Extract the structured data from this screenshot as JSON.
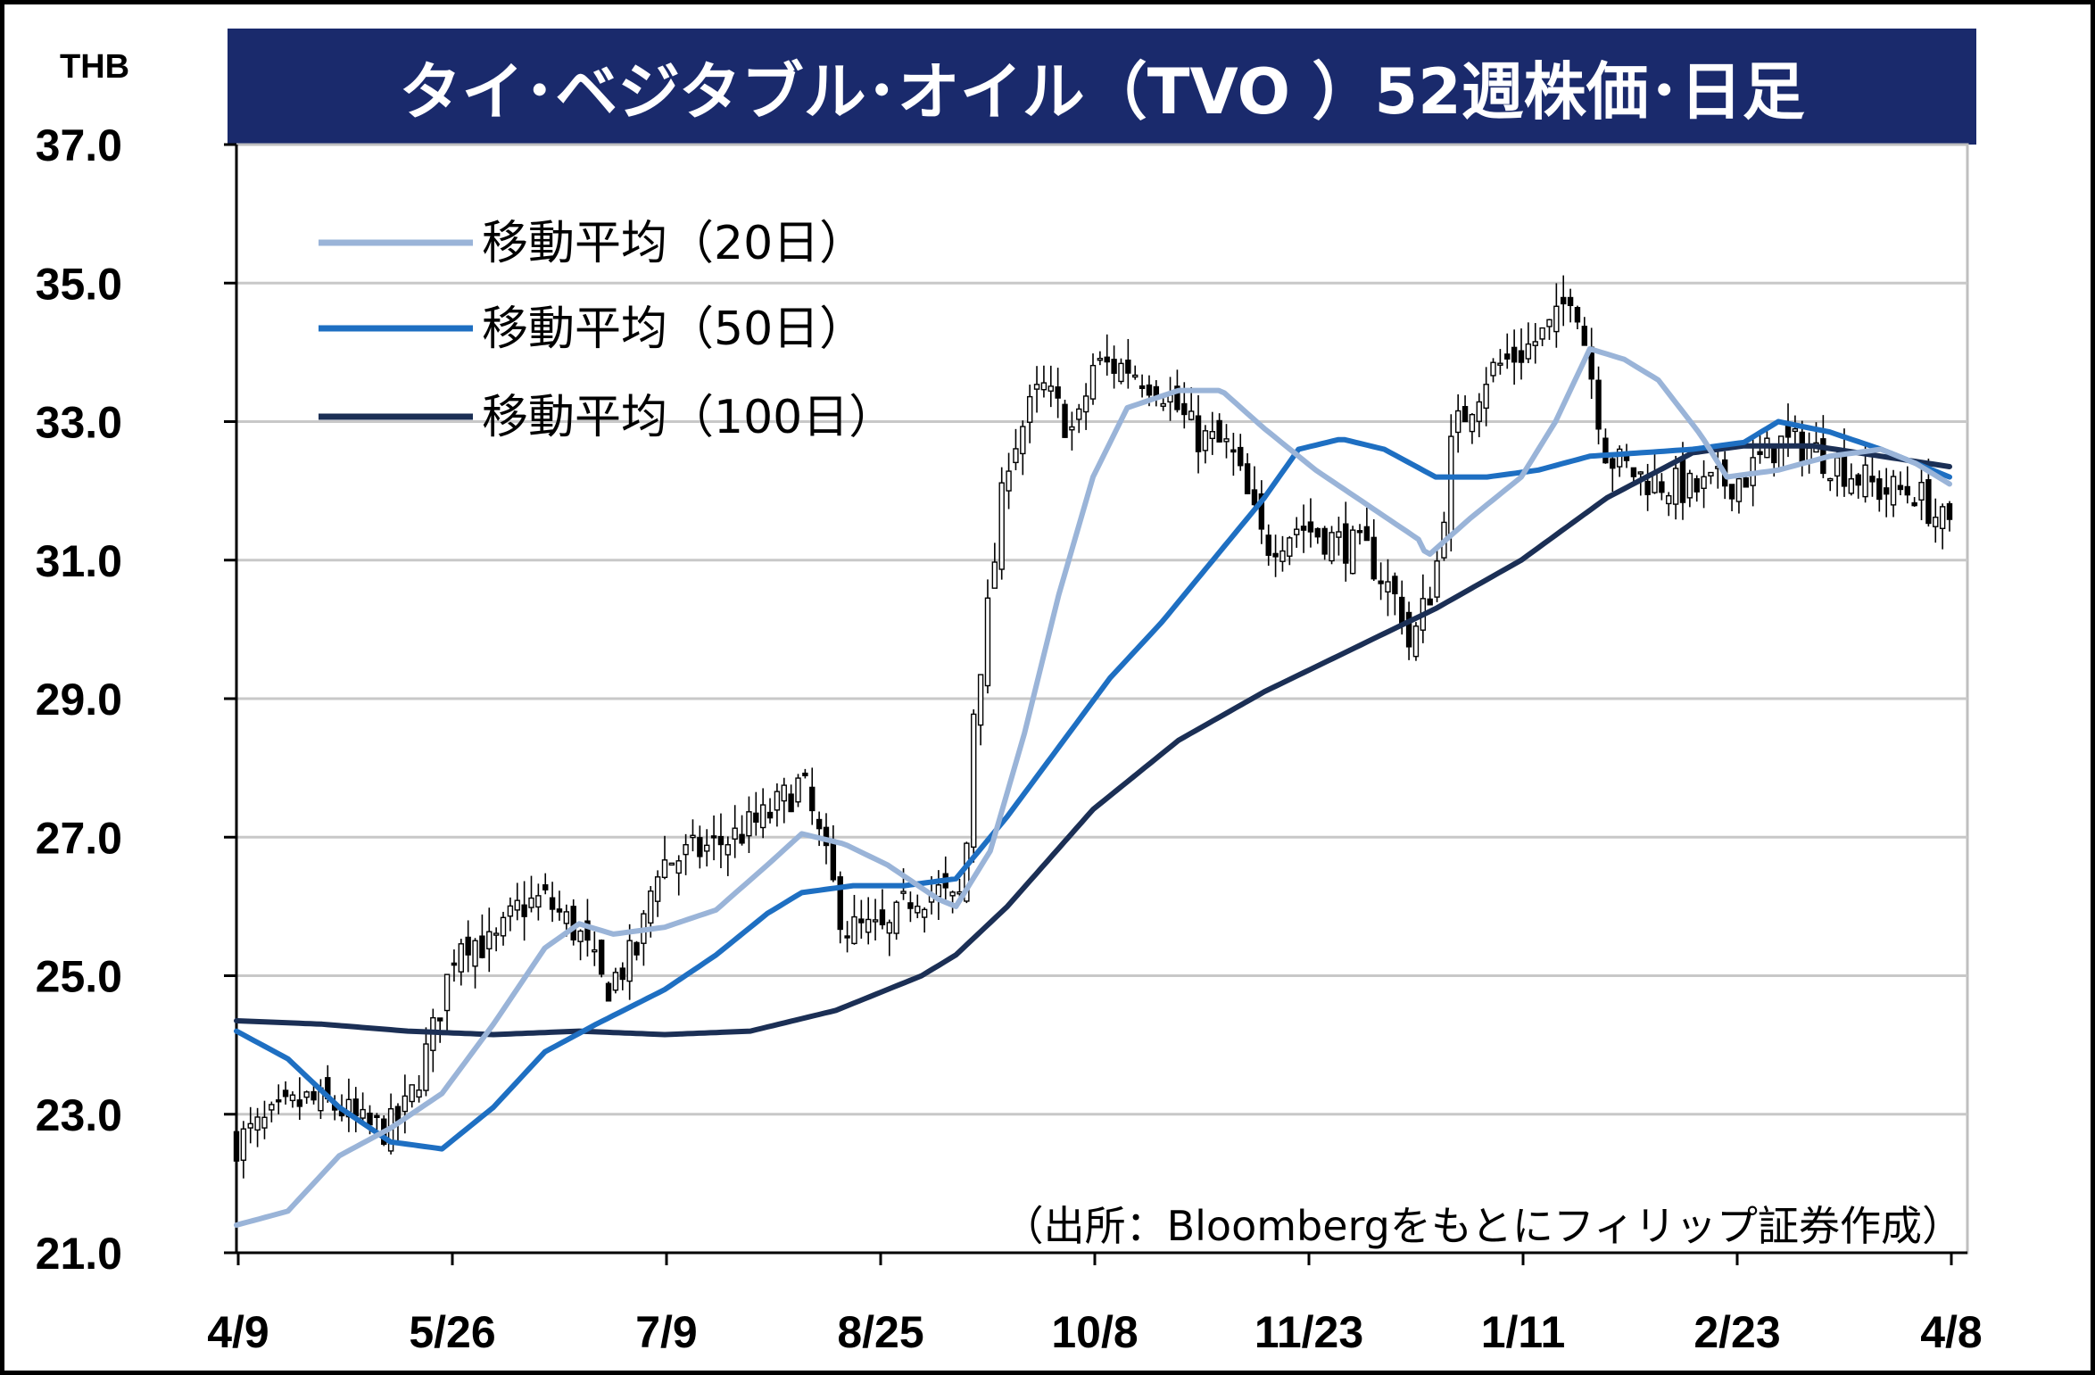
{
  "chart_data": {
    "type": "candlestick",
    "title": "タイ･ベジタブル･オイル（TVO ）52週株価･日足",
    "unit": "THB",
    "source": "（出所：Bloombergをもとにフィリップ証券作成）",
    "ylim": [
      21.0,
      37.0
    ],
    "y_ticks": [
      "21.0",
      "23.0",
      "25.0",
      "27.0",
      "29.0",
      "31.0",
      "33.0",
      "35.0",
      "37.0"
    ],
    "x_ticks": [
      "4/9",
      "5/26",
      "7/9",
      "8/25",
      "10/8",
      "11/23",
      "1/11",
      "2/23",
      "4/8"
    ],
    "grid": true,
    "legend_position": "top-left",
    "colors": {
      "title_bg": "#1a2a6c",
      "ma20": "#9ab4d8",
      "ma50": "#1e6fc2",
      "ma100": "#1b2f55",
      "grid": "#c8c8c8",
      "candle": "#000000"
    },
    "close_anchors": [
      {
        "t": 0.0,
        "v": 22.6
      },
      {
        "t": 0.02,
        "v": 22.9
      },
      {
        "t": 0.04,
        "v": 23.2
      },
      {
        "t": 0.06,
        "v": 23.1
      },
      {
        "t": 0.075,
        "v": 22.8
      },
      {
        "t": 0.09,
        "v": 22.8
      },
      {
        "t": 0.1,
        "v": 23.1
      },
      {
        "t": 0.115,
        "v": 24.2
      },
      {
        "t": 0.13,
        "v": 25.6
      },
      {
        "t": 0.15,
        "v": 25.4
      },
      {
        "t": 0.165,
        "v": 26.0
      },
      {
        "t": 0.18,
        "v": 26.1
      },
      {
        "t": 0.2,
        "v": 25.6
      },
      {
        "t": 0.215,
        "v": 24.8
      },
      {
        "t": 0.235,
        "v": 25.4
      },
      {
        "t": 0.245,
        "v": 26.6
      },
      {
        "t": 0.27,
        "v": 26.8
      },
      {
        "t": 0.29,
        "v": 27.0
      },
      {
        "t": 0.31,
        "v": 27.3
      },
      {
        "t": 0.33,
        "v": 27.8
      },
      {
        "t": 0.34,
        "v": 27.0
      },
      {
        "t": 0.355,
        "v": 25.7
      },
      {
        "t": 0.38,
        "v": 25.6
      },
      {
        "t": 0.395,
        "v": 26.2
      },
      {
        "t": 0.41,
        "v": 26.2
      },
      {
        "t": 0.42,
        "v": 26.0
      },
      {
        "t": 0.425,
        "v": 26.3
      },
      {
        "t": 0.43,
        "v": 28.8
      },
      {
        "t": 0.44,
        "v": 30.5
      },
      {
        "t": 0.45,
        "v": 32.5
      },
      {
        "t": 0.47,
        "v": 33.5
      },
      {
        "t": 0.49,
        "v": 32.8
      },
      {
        "t": 0.5,
        "v": 33.8
      },
      {
        "t": 0.52,
        "v": 33.8
      },
      {
        "t": 0.54,
        "v": 33.5
      },
      {
        "t": 0.56,
        "v": 32.8
      },
      {
        "t": 0.58,
        "v": 32.6
      },
      {
        "t": 0.6,
        "v": 31.2
      },
      {
        "t": 0.62,
        "v": 31.5
      },
      {
        "t": 0.64,
        "v": 31.3
      },
      {
        "t": 0.66,
        "v": 31.1
      },
      {
        "t": 0.68,
        "v": 30.3
      },
      {
        "t": 0.685,
        "v": 29.7
      },
      {
        "t": 0.7,
        "v": 30.8
      },
      {
        "t": 0.71,
        "v": 32.8
      },
      {
        "t": 0.73,
        "v": 33.7
      },
      {
        "t": 0.75,
        "v": 34.0
      },
      {
        "t": 0.77,
        "v": 34.4
      },
      {
        "t": 0.78,
        "v": 35.0
      },
      {
        "t": 0.79,
        "v": 33.8
      },
      {
        "t": 0.8,
        "v": 32.5
      },
      {
        "t": 0.82,
        "v": 32.2
      },
      {
        "t": 0.85,
        "v": 32.0
      },
      {
        "t": 0.88,
        "v": 32.2
      },
      {
        "t": 0.9,
        "v": 32.7
      },
      {
        "t": 0.92,
        "v": 32.6
      },
      {
        "t": 0.94,
        "v": 32.3
      },
      {
        "t": 0.96,
        "v": 32.0
      },
      {
        "t": 0.98,
        "v": 32.0
      },
      {
        "t": 1.0,
        "v": 31.4
      }
    ],
    "ma20_anchors": [
      {
        "t": 0.0,
        "v": 21.4
      },
      {
        "t": 0.03,
        "v": 21.6
      },
      {
        "t": 0.06,
        "v": 22.4
      },
      {
        "t": 0.09,
        "v": 22.8
      },
      {
        "t": 0.12,
        "v": 23.3
      },
      {
        "t": 0.15,
        "v": 24.3
      },
      {
        "t": 0.18,
        "v": 25.4
      },
      {
        "t": 0.2,
        "v": 25.75
      },
      {
        "t": 0.22,
        "v": 25.6
      },
      {
        "t": 0.25,
        "v": 25.7
      },
      {
        "t": 0.28,
        "v": 25.95
      },
      {
        "t": 0.31,
        "v": 26.6
      },
      {
        "t": 0.33,
        "v": 27.05
      },
      {
        "t": 0.355,
        "v": 26.9
      },
      {
        "t": 0.38,
        "v": 26.6
      },
      {
        "t": 0.41,
        "v": 26.1
      },
      {
        "t": 0.42,
        "v": 26.0
      },
      {
        "t": 0.44,
        "v": 26.8
      },
      {
        "t": 0.46,
        "v": 28.5
      },
      {
        "t": 0.48,
        "v": 30.5
      },
      {
        "t": 0.5,
        "v": 32.2
      },
      {
        "t": 0.52,
        "v": 33.2
      },
      {
        "t": 0.55,
        "v": 33.45
      },
      {
        "t": 0.575,
        "v": 33.45
      },
      {
        "t": 0.6,
        "v": 32.9
      },
      {
        "t": 0.63,
        "v": 32.3
      },
      {
        "t": 0.66,
        "v": 31.8
      },
      {
        "t": 0.69,
        "v": 31.3
      },
      {
        "t": 0.695,
        "v": 31.05
      },
      {
        "t": 0.72,
        "v": 31.6
      },
      {
        "t": 0.75,
        "v": 32.2
      },
      {
        "t": 0.77,
        "v": 33.0
      },
      {
        "t": 0.79,
        "v": 34.05
      },
      {
        "t": 0.81,
        "v": 33.9
      },
      {
        "t": 0.83,
        "v": 33.6
      },
      {
        "t": 0.855,
        "v": 32.8
      },
      {
        "t": 0.87,
        "v": 32.2
      },
      {
        "t": 0.9,
        "v": 32.3
      },
      {
        "t": 0.93,
        "v": 32.5
      },
      {
        "t": 0.96,
        "v": 32.6
      },
      {
        "t": 0.98,
        "v": 32.4
      },
      {
        "t": 1.0,
        "v": 32.1
      }
    ],
    "ma50_anchors": [
      {
        "t": 0.0,
        "v": 24.2
      },
      {
        "t": 0.03,
        "v": 23.8
      },
      {
        "t": 0.06,
        "v": 23.1
      },
      {
        "t": 0.09,
        "v": 22.6
      },
      {
        "t": 0.12,
        "v": 22.5
      },
      {
        "t": 0.15,
        "v": 23.1
      },
      {
        "t": 0.18,
        "v": 23.9
      },
      {
        "t": 0.21,
        "v": 24.3
      },
      {
        "t": 0.25,
        "v": 24.8
      },
      {
        "t": 0.28,
        "v": 25.3
      },
      {
        "t": 0.31,
        "v": 25.9
      },
      {
        "t": 0.33,
        "v": 26.2
      },
      {
        "t": 0.36,
        "v": 26.3
      },
      {
        "t": 0.39,
        "v": 26.3
      },
      {
        "t": 0.42,
        "v": 26.4
      },
      {
        "t": 0.45,
        "v": 27.3
      },
      {
        "t": 0.48,
        "v": 28.3
      },
      {
        "t": 0.51,
        "v": 29.3
      },
      {
        "t": 0.54,
        "v": 30.1
      },
      {
        "t": 0.57,
        "v": 31.0
      },
      {
        "t": 0.6,
        "v": 31.9
      },
      {
        "t": 0.62,
        "v": 32.6
      },
      {
        "t": 0.645,
        "v": 32.75
      },
      {
        "t": 0.67,
        "v": 32.6
      },
      {
        "t": 0.7,
        "v": 32.2
      },
      {
        "t": 0.73,
        "v": 32.2
      },
      {
        "t": 0.76,
        "v": 32.3
      },
      {
        "t": 0.79,
        "v": 32.5
      },
      {
        "t": 0.82,
        "v": 32.55
      },
      {
        "t": 0.85,
        "v": 32.6
      },
      {
        "t": 0.88,
        "v": 32.7
      },
      {
        "t": 0.9,
        "v": 33.0
      },
      {
        "t": 0.93,
        "v": 32.85
      },
      {
        "t": 0.96,
        "v": 32.6
      },
      {
        "t": 1.0,
        "v": 32.2
      }
    ],
    "ma100_anchors": [
      {
        "t": 0.0,
        "v": 24.35
      },
      {
        "t": 0.05,
        "v": 24.3
      },
      {
        "t": 0.1,
        "v": 24.2
      },
      {
        "t": 0.15,
        "v": 24.15
      },
      {
        "t": 0.2,
        "v": 24.2
      },
      {
        "t": 0.25,
        "v": 24.15
      },
      {
        "t": 0.3,
        "v": 24.2
      },
      {
        "t": 0.35,
        "v": 24.5
      },
      {
        "t": 0.4,
        "v": 25.0
      },
      {
        "t": 0.42,
        "v": 25.3
      },
      {
        "t": 0.45,
        "v": 26.0
      },
      {
        "t": 0.5,
        "v": 27.4
      },
      {
        "t": 0.55,
        "v": 28.4
      },
      {
        "t": 0.6,
        "v": 29.1
      },
      {
        "t": 0.65,
        "v": 29.7
      },
      {
        "t": 0.7,
        "v": 30.3
      },
      {
        "t": 0.75,
        "v": 31.0
      },
      {
        "t": 0.8,
        "v": 31.9
      },
      {
        "t": 0.85,
        "v": 32.55
      },
      {
        "t": 0.88,
        "v": 32.65
      },
      {
        "t": 0.92,
        "v": 32.65
      },
      {
        "t": 0.96,
        "v": 32.5
      },
      {
        "t": 1.0,
        "v": 32.35
      }
    ],
    "series": [
      {
        "name": "移動平均（20日）",
        "color": "#9ab4d8"
      },
      {
        "name": "移動平均（50日）",
        "color": "#1e6fc2"
      },
      {
        "name": "移動平均（100日）",
        "color": "#1b2f55"
      }
    ]
  }
}
